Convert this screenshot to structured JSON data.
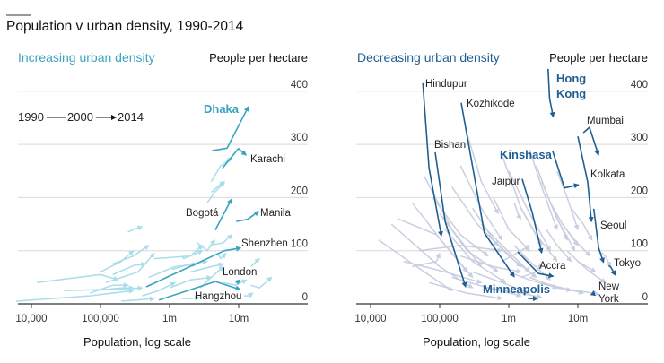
{
  "title": "Population v urban density, 1990-2014",
  "legend": {
    "y1990": "1990",
    "y2000": "2000",
    "y2014": "2014"
  },
  "colors": {
    "increase_highlight": "#3aa3bf",
    "increase_background": "#a9dde9",
    "decrease_highlight": "#1f5f93",
    "decrease_background": "#c9cfe0",
    "grid": "#d9d9d9",
    "axis": "#333333"
  },
  "chart_data": [
    {
      "type": "line",
      "subtitle": "Increasing urban density",
      "ylabel": "People per hectare",
      "xlabel": "Population, log scale",
      "xscale": "log",
      "xlim": [
        6000,
        40000000
      ],
      "ylim": [
        0,
        400
      ],
      "xticks": [
        {
          "value": 10000,
          "label": "10,000"
        },
        {
          "value": 100000,
          "label": "100,000"
        },
        {
          "value": 1000000,
          "label": "1m"
        },
        {
          "value": 10000000,
          "label": "10m"
        }
      ],
      "yticks": [
        {
          "value": 0,
          "label": "0"
        },
        {
          "value": 100,
          "label": "100"
        },
        {
          "value": 200,
          "label": "200"
        },
        {
          "value": 300,
          "label": "300"
        },
        {
          "value": 400,
          "label": "400"
        }
      ],
      "grid": true,
      "point_order": "[pop1990, density1990, pop2000, density2000, pop2014, density2014]",
      "highlighted": [
        {
          "name": "Dhaka",
          "points": [
            4100000,
            288,
            6800000,
            293,
            13800000,
            371
          ]
        },
        {
          "name": "Karachi",
          "points": [
            5800000,
            255,
            9900000,
            292,
            12800000,
            280
          ]
        },
        {
          "name": "Bogotá",
          "points": [
            4600000,
            139,
            6000000,
            168,
            7900000,
            197
          ]
        },
        {
          "name": "Manila",
          "points": [
            9200000,
            155,
            13500000,
            159,
            19500000,
            174
          ]
        },
        {
          "name": "Shenzhen",
          "points": [
            460000,
            32,
            6200000,
            100,
            10700000,
            105
          ]
        },
        {
          "name": "London",
          "points": [
            9000000,
            40,
            9800000,
            42,
            10500000,
            45
          ]
        },
        {
          "name": "Hangzhou",
          "points": [
            700000,
            7,
            4600000,
            42,
            10500000,
            27
          ]
        }
      ],
      "background": [
        [
          12000,
          40,
          100000,
          55,
          180000,
          45
        ],
        [
          6000,
          5,
          70000,
          15,
          300000,
          25
        ],
        [
          30000,
          25,
          200000,
          28,
          400000,
          30
        ],
        [
          100000,
          60,
          200000,
          80,
          300000,
          100
        ],
        [
          150000,
          75,
          300000,
          90,
          500000,
          110
        ],
        [
          150000,
          55,
          300000,
          72,
          450000,
          75
        ],
        [
          120000,
          40,
          350000,
          60,
          600000,
          95
        ],
        [
          1500000,
          90,
          1600000,
          85,
          3000000,
          100
        ],
        [
          600000,
          85,
          2000000,
          90,
          3000000,
          110
        ],
        [
          2500000,
          115,
          3500000,
          100,
          4500000,
          120
        ],
        [
          3800000,
          110,
          6000000,
          115,
          8000000,
          130
        ],
        [
          250000,
          135,
          300000,
          140,
          400000,
          145
        ],
        [
          1100000,
          65,
          2000000,
          75,
          3500000,
          80
        ],
        [
          2000000,
          60,
          4000000,
          70,
          6000000,
          75
        ],
        [
          500000,
          50,
          1200000,
          70,
          2500000,
          75
        ],
        [
          1000000,
          30,
          2000000,
          45,
          4000000,
          50
        ],
        [
          400000,
          15,
          700000,
          25,
          1200000,
          40
        ],
        [
          1500000,
          10,
          2000000,
          10,
          2700000,
          12
        ],
        [
          6000000,
          40,
          9000000,
          35,
          13000000,
          45
        ],
        [
          15000000,
          35,
          20000000,
          30,
          30000000,
          50
        ],
        [
          12000000,
          15,
          14000000,
          15,
          16000000,
          20
        ],
        [
          3500000,
          190,
          4500000,
          210,
          6200000,
          228
        ],
        [
          4000000,
          230,
          5500000,
          260,
          8000000,
          275
        ],
        [
          4000000,
          210,
          5500000,
          225,
          6200000,
          230
        ],
        [
          15000000,
          70,
          18000000,
          80,
          20000000,
          85
        ],
        [
          200000,
          5,
          400000,
          8,
          600000,
          10
        ],
        [
          80000,
          25,
          200000,
          30,
          300000,
          30
        ],
        [
          2800000,
          30,
          4000000,
          50,
          6000000,
          70
        ],
        [
          70000,
          20,
          150000,
          35,
          250000,
          35
        ],
        [
          5000000,
          95,
          5500000,
          85,
          6500000,
          95
        ]
      ]
    },
    {
      "type": "line",
      "subtitle": "Decreasing urban density",
      "ylabel": "People per hectare",
      "xlabel": "Population, log scale",
      "xscale": "log",
      "xlim": [
        6000,
        40000000
      ],
      "ylim": [
        0,
        400
      ],
      "xticks": [
        {
          "value": 10000,
          "label": "10,000"
        },
        {
          "value": 100000,
          "label": "100,000"
        },
        {
          "value": 1000000,
          "label": "1m"
        },
        {
          "value": 10000000,
          "label": "10m"
        }
      ],
      "yticks": [
        {
          "value": 0,
          "label": "0"
        },
        {
          "value": 100,
          "label": "100"
        },
        {
          "value": 200,
          "label": "200"
        },
        {
          "value": 300,
          "label": "300"
        },
        {
          "value": 400,
          "label": "400"
        }
      ],
      "grid": true,
      "point_order": "[pop1990, density1990, pop2000, density2000, pop2014, density2014]",
      "highlighted": [
        {
          "name": "Hindupur",
          "points": [
            57000,
            415,
            70000,
            256,
            106000,
            128
          ]
        },
        {
          "name": "Kozhikode",
          "points": [
            205000,
            378,
            445000,
            133,
            1200000,
            51
          ]
        },
        {
          "name": "Bishan",
          "points": [
            86000,
            285,
            120000,
            155,
            237000,
            32
          ]
        },
        {
          "name": "Hong Kong",
          "points": [
            3700000,
            442,
            3900000,
            386,
            4400000,
            352
          ]
        },
        {
          "name": "Mumbai",
          "points": [
            12000000,
            322,
            14700000,
            332,
            19900000,
            280
          ]
        },
        {
          "name": "Kinshasa",
          "points": [
            4300000,
            288,
            6400000,
            218,
            10200000,
            224
          ]
        },
        {
          "name": "Kolkata",
          "points": [
            10000000,
            315,
            13900000,
            229,
            15700000,
            155
          ]
        },
        {
          "name": "Jaipur",
          "points": [
            1560000,
            235,
            2180000,
            172,
            3000000,
            96
          ]
        },
        {
          "name": "Seoul",
          "points": [
            17000000,
            179,
            20000000,
            105,
            23500000,
            78
          ]
        },
        {
          "name": "Accra",
          "points": [
            1350000,
            98,
            2700000,
            57,
            4400000,
            52
          ]
        },
        {
          "name": "Tokyo",
          "points": [
            28000000,
            72,
            30000000,
            69,
            35000000,
            54
          ]
        },
        {
          "name": "Minneapolis",
          "points": [
            1900000,
            10,
            2200000,
            10,
            2600000,
            10
          ]
        },
        {
          "name": "New York",
          "points": [
            16500000,
            18,
            16800000,
            20,
            17000000,
            24
          ]
        }
      ],
      "background": [
        [
          13000,
          120,
          60000,
          60,
          150000,
          25
        ],
        [
          20000,
          150,
          100000,
          70,
          300000,
          30
        ],
        [
          25000,
          160,
          90000,
          130,
          250000,
          60
        ],
        [
          40000,
          190,
          120000,
          110,
          300000,
          50
        ],
        [
          60000,
          240,
          150000,
          140,
          400000,
          70
        ],
        [
          30000,
          80,
          120000,
          60,
          400000,
          40
        ],
        [
          50000,
          100,
          200000,
          110,
          800000,
          100
        ],
        [
          80000,
          200,
          200000,
          130,
          500000,
          90
        ],
        [
          100000,
          170,
          250000,
          100,
          700000,
          60
        ],
        [
          120000,
          140,
          300000,
          80,
          900000,
          40
        ],
        [
          150000,
          220,
          350000,
          150,
          700000,
          110
        ],
        [
          200000,
          260,
          400000,
          180,
          800000,
          120
        ],
        [
          250000,
          320,
          400000,
          230,
          700000,
          170
        ],
        [
          300000,
          180,
          600000,
          120,
          1500000,
          70
        ],
        [
          400000,
          150,
          800000,
          110,
          2000000,
          60
        ],
        [
          500000,
          130,
          1000000,
          90,
          2500000,
          50
        ],
        [
          600000,
          200,
          1000000,
          140,
          2000000,
          100
        ],
        [
          800000,
          280,
          1500000,
          180,
          3000000,
          110
        ],
        [
          1000000,
          250,
          2000000,
          170,
          4000000,
          100
        ],
        [
          1200000,
          110,
          2000000,
          80,
          4000000,
          45
        ],
        [
          1500000,
          180,
          2500000,
          130,
          5000000,
          80
        ],
        [
          2000000,
          290,
          3000000,
          220,
          5000000,
          140
        ],
        [
          2500000,
          260,
          4000000,
          190,
          7000000,
          120
        ],
        [
          3000000,
          230,
          5000000,
          160,
          9000000,
          100
        ],
        [
          3500000,
          140,
          5000000,
          110,
          8000000,
          80
        ],
        [
          4000000,
          190,
          6000000,
          150,
          10000000,
          110
        ],
        [
          5000000,
          250,
          7000000,
          200,
          10000000,
          140
        ],
        [
          6000000,
          150,
          9000000,
          120,
          15000000,
          90
        ],
        [
          7000000,
          100,
          10000000,
          80,
          18000000,
          60
        ],
        [
          8000000,
          180,
          12000000,
          150,
          16000000,
          120
        ],
        [
          10000000,
          80,
          15000000,
          60,
          25000000,
          40
        ],
        [
          1000000,
          60,
          2000000,
          45,
          5000000,
          30
        ],
        [
          2000000,
          50,
          4000000,
          35,
          8000000,
          25
        ],
        [
          300000,
          60,
          800000,
          40,
          2000000,
          20
        ],
        [
          150000,
          50,
          500000,
          30,
          1500000,
          15
        ],
        [
          70000,
          40,
          250000,
          20,
          800000,
          10
        ],
        [
          500000,
          30,
          1500000,
          20,
          3000000,
          12
        ],
        [
          3000000,
          40,
          6000000,
          30,
          12000000,
          20
        ],
        [
          5000000,
          30,
          10000000,
          25,
          20000000,
          18
        ],
        [
          40000,
          70,
          90000,
          80,
          100000,
          95
        ],
        [
          1500000,
          50,
          2500000,
          60,
          3000000,
          75
        ],
        [
          800000,
          80,
          1500000,
          100,
          2000000,
          110
        ],
        [
          20000000,
          100,
          25000000,
          90,
          30000000,
          70
        ],
        [
          200000,
          90,
          600000,
          70,
          1500000,
          60
        ],
        [
          1200000,
          190,
          1400000,
          165,
          1500000,
          160
        ]
      ]
    }
  ]
}
